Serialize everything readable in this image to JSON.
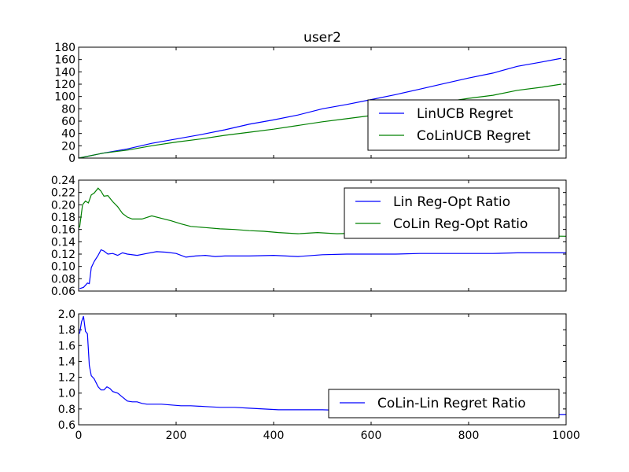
{
  "chart_data": [
    {
      "type": "line",
      "title": "user2",
      "xlim": [
        0,
        1000
      ],
      "ylim": [
        0,
        180
      ],
      "yticks": [
        0,
        20,
        40,
        60,
        80,
        100,
        120,
        140,
        160,
        180
      ],
      "xticks_labeled": false,
      "legend_loc": "lower-right",
      "series": [
        {
          "name": "LinUCB Regret",
          "color": "#0000ff",
          "x": [
            0,
            50,
            100,
            150,
            200,
            250,
            300,
            350,
            400,
            450,
            500,
            550,
            600,
            650,
            700,
            750,
            800,
            850,
            900,
            950,
            990
          ],
          "values": [
            0,
            8,
            15,
            24,
            31,
            38,
            46,
            55,
            62,
            70,
            80,
            87,
            95,
            103,
            112,
            121,
            130,
            138,
            149,
            156,
            162
          ]
        },
        {
          "name": "CoLinUCB Regret",
          "color": "#008000",
          "x": [
            0,
            50,
            100,
            150,
            200,
            250,
            300,
            350,
            400,
            450,
            500,
            550,
            600,
            650,
            700,
            750,
            800,
            850,
            900,
            950,
            990
          ],
          "values": [
            0,
            8,
            13,
            20,
            26,
            31,
            37,
            42,
            47,
            53,
            59,
            64,
            69,
            76,
            84,
            91,
            97,
            102,
            110,
            115,
            120
          ]
        }
      ]
    },
    {
      "type": "line",
      "xlim": [
        0,
        1000
      ],
      "ylim": [
        0.06,
        0.24
      ],
      "yticks": [
        0.06,
        0.08,
        0.1,
        0.12,
        0.14,
        0.16,
        0.18,
        0.2,
        0.22,
        0.24
      ],
      "xticks_labeled": false,
      "legend_loc": "upper-right",
      "series": [
        {
          "name": "Lin Reg-Opt Ratio",
          "color": "#0000ff",
          "x": [
            2,
            10,
            18,
            22,
            26,
            32,
            40,
            46,
            52,
            60,
            70,
            80,
            90,
            100,
            120,
            140,
            160,
            180,
            200,
            220,
            240,
            260,
            280,
            300,
            350,
            400,
            450,
            500,
            550,
            600,
            650,
            700,
            750,
            800,
            850,
            900,
            950,
            1000
          ],
          "values": [
            0.064,
            0.066,
            0.073,
            0.072,
            0.098,
            0.108,
            0.118,
            0.127,
            0.125,
            0.12,
            0.121,
            0.118,
            0.122,
            0.12,
            0.118,
            0.121,
            0.124,
            0.123,
            0.121,
            0.115,
            0.117,
            0.118,
            0.116,
            0.117,
            0.117,
            0.118,
            0.116,
            0.119,
            0.12,
            0.12,
            0.12,
            0.121,
            0.121,
            0.121,
            0.121,
            0.122,
            0.122,
            0.122
          ]
        },
        {
          "name": "CoLin Reg-Opt Ratio",
          "color": "#008000",
          "x": [
            2,
            8,
            14,
            20,
            26,
            32,
            40,
            46,
            52,
            60,
            70,
            80,
            90,
            100,
            110,
            130,
            150,
            170,
            190,
            210,
            230,
            260,
            290,
            320,
            350,
            380,
            410,
            450,
            490,
            530,
            570,
            620,
            700,
            800,
            900,
            1000
          ],
          "values": [
            0.163,
            0.2,
            0.206,
            0.203,
            0.216,
            0.219,
            0.227,
            0.222,
            0.214,
            0.215,
            0.205,
            0.197,
            0.186,
            0.18,
            0.177,
            0.177,
            0.182,
            0.178,
            0.174,
            0.169,
            0.165,
            0.163,
            0.161,
            0.16,
            0.158,
            0.157,
            0.155,
            0.153,
            0.155,
            0.153,
            0.154,
            0.153,
            0.152,
            0.152,
            0.15,
            0.149
          ]
        }
      ]
    },
    {
      "type": "line",
      "xlim": [
        0,
        1000
      ],
      "ylim": [
        0.6,
        2.0
      ],
      "yticks": [
        0.6,
        0.8,
        1.0,
        1.2,
        1.4,
        1.6,
        1.8,
        2.0
      ],
      "xticks": [
        0,
        200,
        400,
        600,
        800,
        1000
      ],
      "legend_loc": "lower-right",
      "series": [
        {
          "name": "CoLin-Lin Regret Ratio",
          "color": "#0000ff",
          "x": [
            2,
            6,
            10,
            14,
            18,
            22,
            26,
            32,
            40,
            46,
            52,
            58,
            64,
            70,
            80,
            90,
            100,
            110,
            120,
            130,
            140,
            150,
            170,
            190,
            210,
            230,
            260,
            290,
            320,
            350,
            380,
            410,
            450,
            500,
            550,
            600,
            650,
            700,
            750,
            800,
            850,
            900,
            950,
            1000
          ],
          "values": [
            1.75,
            1.9,
            1.97,
            1.78,
            1.75,
            1.35,
            1.22,
            1.18,
            1.08,
            1.04,
            1.04,
            1.08,
            1.06,
            1.02,
            1.0,
            0.95,
            0.9,
            0.89,
            0.89,
            0.87,
            0.86,
            0.86,
            0.86,
            0.85,
            0.84,
            0.84,
            0.83,
            0.82,
            0.82,
            0.81,
            0.8,
            0.79,
            0.79,
            0.79,
            0.78,
            0.77,
            0.76,
            0.76,
            0.75,
            0.75,
            0.74,
            0.74,
            0.73,
            0.73
          ]
        }
      ]
    }
  ]
}
